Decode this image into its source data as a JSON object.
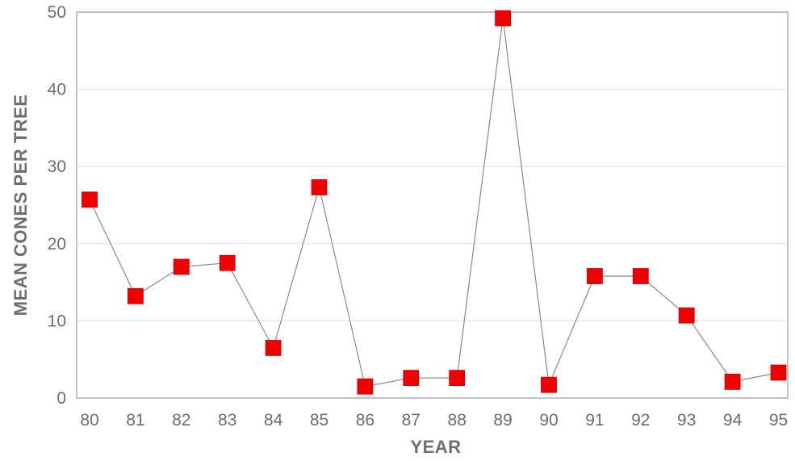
{
  "chart_data": {
    "type": "line",
    "title": "",
    "xlabel": "YEAR",
    "ylabel": "MEAN CONES PER TREE",
    "categories": [
      "80",
      "81",
      "82",
      "83",
      "84",
      "85",
      "86",
      "87",
      "88",
      "89",
      "90",
      "91",
      "92",
      "93",
      "94",
      "95"
    ],
    "series": [
      {
        "values": [
          25.7,
          13.2,
          17.0,
          17.5,
          6.5,
          27.3,
          1.5,
          2.6,
          2.6,
          49.2,
          1.7,
          15.8,
          15.8,
          10.7,
          2.1,
          3.3
        ]
      }
    ],
    "ylim": [
      0,
      50
    ],
    "yticks": [
      0,
      10,
      20,
      30,
      40,
      50
    ],
    "grid": true,
    "marker": "square",
    "colors": {
      "marker": "#ee0000",
      "line": "#8a8a8a",
      "grid": "#e0e0e0",
      "frame": "#9a9a9a",
      "text": "#6e6e6e"
    }
  }
}
